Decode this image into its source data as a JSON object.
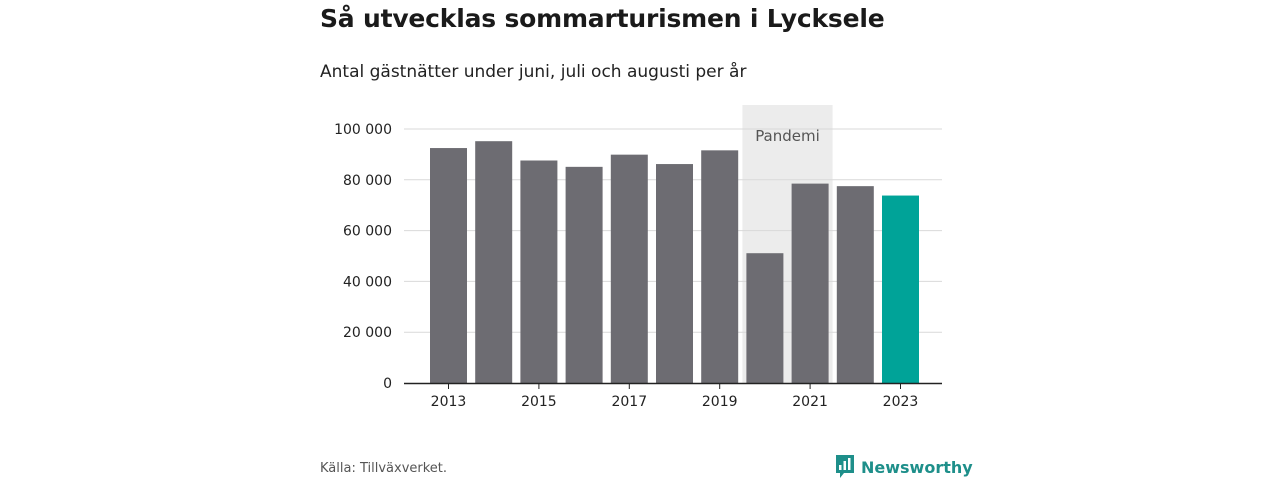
{
  "header": {
    "title": "Så utvecklas sommarturismen i Lycksele",
    "subtitle": "Antal gästnätter under juni, juli och augusti per år"
  },
  "footer": {
    "source": "Källa: Tillväxverket.",
    "brand": "Newsworthy"
  },
  "colors": {
    "bar": "#6d6c72",
    "highlight": "#00a398",
    "band": "#ececec",
    "grid": "#d9d9d9",
    "brand": "#1e8f8a"
  },
  "chart_data": {
    "type": "bar",
    "title": "Så utvecklas sommarturismen i Lycksele",
    "subtitle": "Antal gästnätter under juni, juli och augusti per år",
    "categories": [
      "2013",
      "2014",
      "2015",
      "2016",
      "2017",
      "2018",
      "2019",
      "2020",
      "2021",
      "2022",
      "2023"
    ],
    "values": [
      92500,
      95200,
      87600,
      85100,
      89900,
      86200,
      91600,
      51100,
      78500,
      77500,
      73800
    ],
    "highlight_index": 10,
    "x_tick_labels": [
      "2013",
      "2015",
      "2017",
      "2019",
      "2021",
      "2023"
    ],
    "ylim": [
      0,
      100000
    ],
    "y_ticks": [
      0,
      20000,
      40000,
      60000,
      80000,
      100000
    ],
    "y_tick_labels": [
      "0",
      "20 000",
      "40 000",
      "60 000",
      "80 000",
      "100 000"
    ],
    "grid": true,
    "annotation": {
      "label": "Pandemi",
      "from": "2020",
      "to": "2021"
    }
  }
}
